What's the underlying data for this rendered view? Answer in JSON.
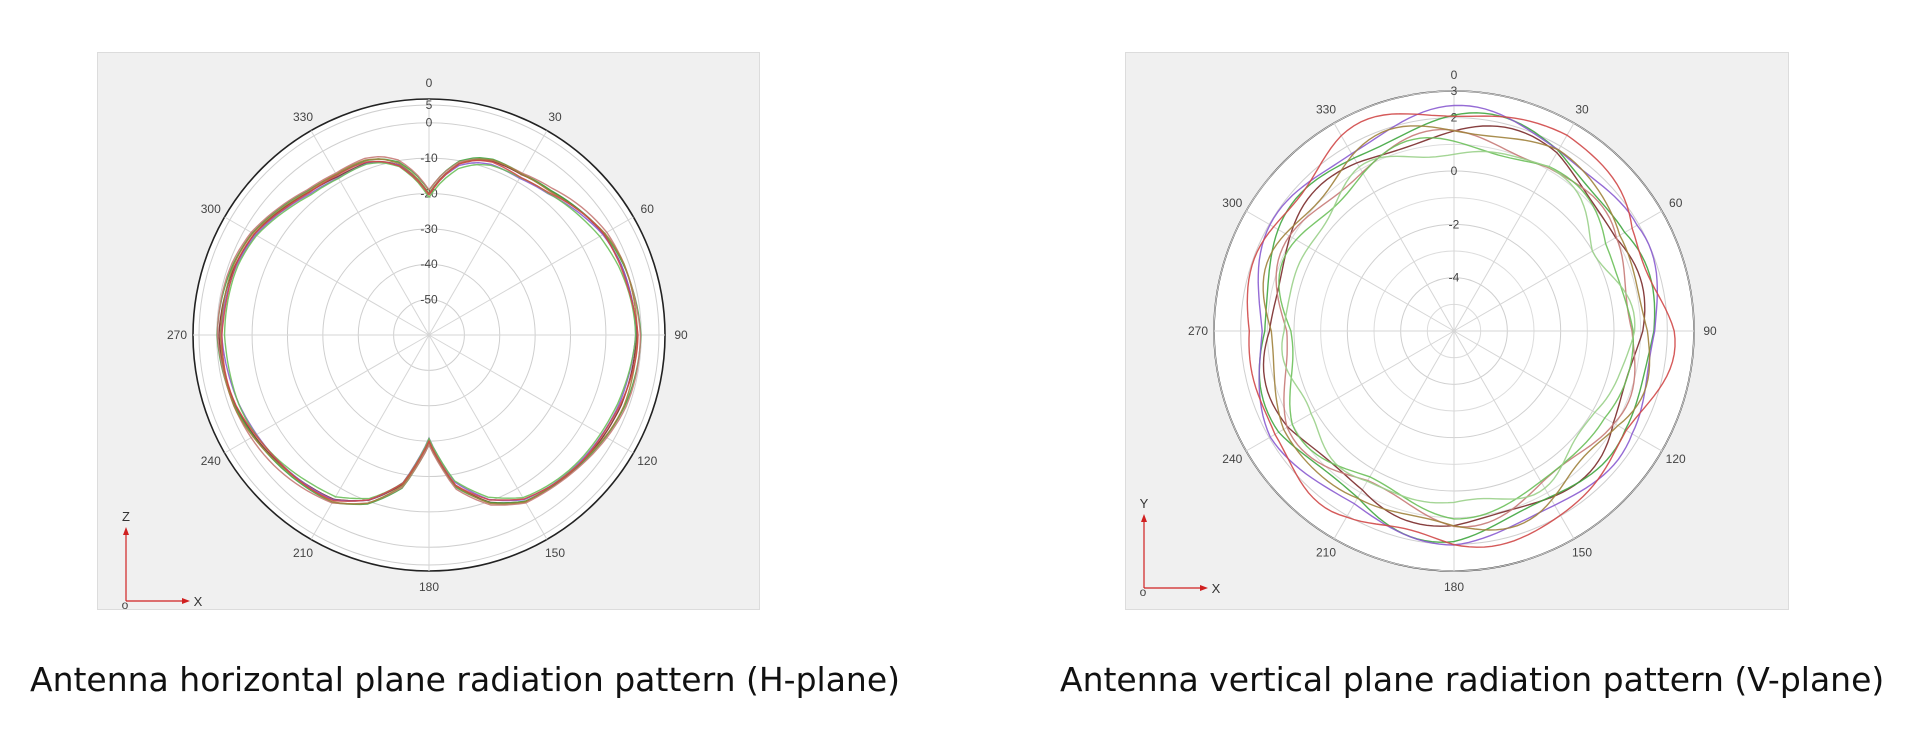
{
  "chart_data": [
    {
      "type": "polar",
      "title": "",
      "caption": "Antenna horizontal plane radiation pattern (H-plane)",
      "angle_ticks": [
        "0",
        "30",
        "60",
        "90",
        "120",
        "150",
        "180",
        "210",
        "240",
        "270",
        "300",
        "330"
      ],
      "radial_ticks": [
        "5",
        "0",
        "-10",
        "-20",
        "-30",
        "-40",
        "-50"
      ],
      "rlim": [
        -60,
        5
      ],
      "grid": true,
      "axis_indicator": {
        "vertical": "Z",
        "horizontal": "X",
        "origin": "o"
      },
      "series_colors": [
        "#7a2a2a",
        "#3fa63f",
        "#8a5bd0",
        "#c77a77",
        "#6cc05a",
        "#a0823c",
        "#d04848"
      ],
      "pattern_points": {
        "angles": [
          0,
          5,
          10,
          15,
          20,
          25,
          30,
          40,
          50,
          60,
          70,
          80,
          90,
          100,
          110,
          120,
          130,
          140,
          150,
          160,
          170,
          175,
          180,
          185,
          190,
          200,
          210,
          220,
          230,
          240,
          250,
          260,
          270,
          280,
          290,
          300,
          310,
          320,
          330,
          335,
          340,
          345,
          350,
          355
        ],
        "gain_db": [
          -20,
          -15,
          -11,
          -9,
          -8,
          -8,
          -8,
          -7,
          -5,
          -3,
          -2,
          -1.5,
          -1,
          -1.5,
          -2,
          -3,
          -4,
          -5,
          -6,
          -10,
          -17,
          -24,
          -30,
          -24,
          -17,
          -10,
          -6,
          -5,
          -4,
          -3,
          -2,
          -1.5,
          -1,
          -1.5,
          -2,
          -3,
          -5,
          -7,
          -8,
          -8,
          -8,
          -9,
          -11,
          -15
        ]
      }
    },
    {
      "type": "polar",
      "title": "",
      "caption": "Antenna vertical plane radiation pattern (V-plane)",
      "angle_ticks": [
        "0",
        "30",
        "60",
        "90",
        "120",
        "150",
        "180",
        "210",
        "240",
        "270",
        "300",
        "330"
      ],
      "radial_ticks": [
        "3",
        "2",
        "0",
        "-2",
        "-4"
      ],
      "rlim": [
        -6,
        3
      ],
      "grid": true,
      "axis_indicator": {
        "vertical": "Y",
        "horizontal": "X",
        "origin": "o"
      },
      "series_colors": [
        "#7a2a2a",
        "#3fa63f",
        "#8a5bd0",
        "#c77a77",
        "#6cc05a",
        "#a0823c",
        "#d04848",
        "#9ad08a"
      ],
      "pattern_points": {
        "angles": [
          0,
          30,
          60,
          90,
          120,
          150,
          180,
          210,
          240,
          270,
          300,
          330
        ],
        "gain_db": [
          1.5,
          1.6,
          1.0,
          1.2,
          0.9,
          1.1,
          1.3,
          1.0,
          1.2,
          0.8,
          1.1,
          1.4
        ],
        "ripple_db": 0.25,
        "ripple_cycles": 6
      }
    }
  ],
  "captions": {
    "h": "Antenna horizontal plane radiation pattern (H-plane)",
    "v": "Antenna vertical plane radiation pattern (V-plane)"
  }
}
